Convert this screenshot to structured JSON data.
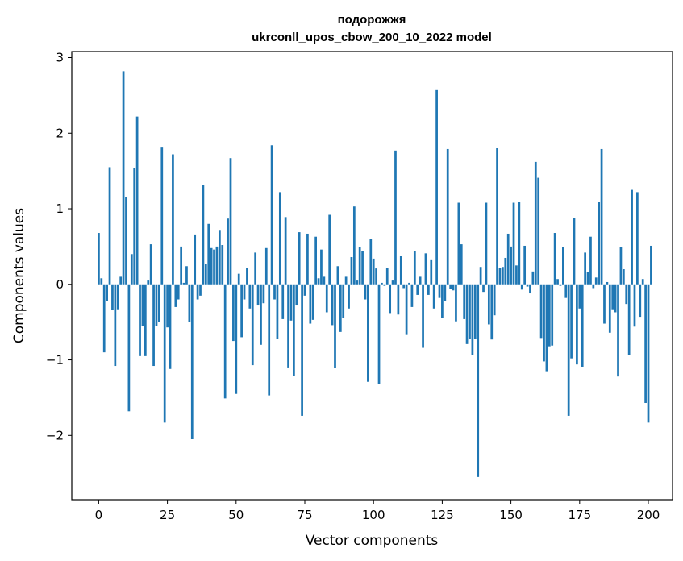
{
  "chart_data": {
    "type": "bar",
    "title": "подорожжя",
    "subtitle": "ukrconll_upos_cbow_200_10_2022 model",
    "xlabel": "Vector components",
    "ylabel": "Components values",
    "xlim": [
      -9.8,
      208.8
    ],
    "ylim": [
      -2.85,
      3.08
    ],
    "grid": false,
    "bar_color": "#1f77b4",
    "x_ticks": [
      0,
      25,
      50,
      75,
      100,
      125,
      150,
      175,
      200
    ],
    "y_ticks": [
      -2,
      -1,
      0,
      1,
      2,
      3
    ],
    "x_tick_labels": [
      "0",
      "25",
      "50",
      "75",
      "100",
      "125",
      "150",
      "175",
      "200"
    ],
    "y_tick_labels": [
      "−2",
      "−1",
      "0",
      "1",
      "2",
      "3"
    ],
    "values": [
      0.68,
      0.08,
      -0.9,
      -0.22,
      1.55,
      -0.34,
      -1.08,
      -0.33,
      0.1,
      2.82,
      1.16,
      -1.68,
      0.4,
      1.54,
      2.22,
      -0.95,
      -0.55,
      -0.95,
      0.05,
      0.53,
      -1.08,
      -0.55,
      -0.5,
      1.82,
      -1.83,
      -0.57,
      -1.12,
      1.72,
      -0.3,
      -0.2,
      0.5,
      0.02,
      0.24,
      -0.5,
      -2.05,
      0.66,
      -0.2,
      -0.15,
      1.32,
      0.27,
      0.8,
      0.48,
      0.46,
      0.5,
      0.72,
      0.52,
      -1.51,
      0.87,
      1.67,
      -0.75,
      -1.45,
      0.14,
      -0.7,
      -0.2,
      0.22,
      -0.32,
      -1.07,
      0.42,
      -0.28,
      -0.8,
      -0.25,
      0.48,
      -1.47,
      1.84,
      -0.2,
      -0.72,
      1.22,
      -0.46,
      0.89,
      -1.1,
      -0.48,
      -1.21,
      -0.28,
      0.69,
      -1.74,
      -0.15,
      0.67,
      -0.52,
      -0.47,
      0.63,
      0.08,
      0.46,
      0.1,
      -0.37,
      0.92,
      -0.54,
      -1.11,
      0.24,
      -0.63,
      -0.45,
      0.1,
      -0.32,
      0.36,
      1.03,
      0.05,
      0.49,
      0.44,
      -0.2,
      -1.29,
      0.6,
      0.34,
      0.21,
      -1.32,
      0.02,
      -0.02,
      0.22,
      -0.38,
      0.05,
      1.77,
      -0.4,
      0.38,
      -0.05,
      -0.66,
      0.02,
      -0.3,
      0.44,
      -0.14,
      0.1,
      -0.84,
      0.41,
      -0.14,
      0.33,
      -0.32,
      2.57,
      -0.18,
      -0.44,
      -0.22,
      1.79,
      -0.06,
      -0.08,
      -0.49,
      1.08,
      0.53,
      -0.46,
      -0.79,
      -0.72,
      -0.94,
      -0.72,
      -2.55,
      0.23,
      -0.1,
      1.08,
      -0.53,
      -0.73,
      -0.41,
      1.8,
      0.22,
      0.23,
      0.35,
      0.67,
      0.5,
      1.08,
      0.25,
      1.09,
      -0.07,
      0.51,
      -0.03,
      -0.12,
      0.17,
      1.62,
      1.41,
      -0.71,
      -1.02,
      -1.15,
      -0.82,
      -0.81,
      0.68,
      0.07,
      -0.02,
      0.49,
      -0.18,
      -1.74,
      -0.98,
      0.88,
      -1.06,
      -0.32,
      -1.09,
      0.42,
      0.16,
      0.63,
      -0.05,
      0.09,
      1.09,
      1.79,
      -0.52,
      0.03,
      -0.64,
      -0.33,
      -0.37,
      -1.22,
      0.49,
      0.2,
      -0.26,
      -0.94,
      1.25,
      -0.56,
      1.22,
      -0.43,
      0.07,
      -1.57,
      -1.83,
      0.51
    ]
  }
}
